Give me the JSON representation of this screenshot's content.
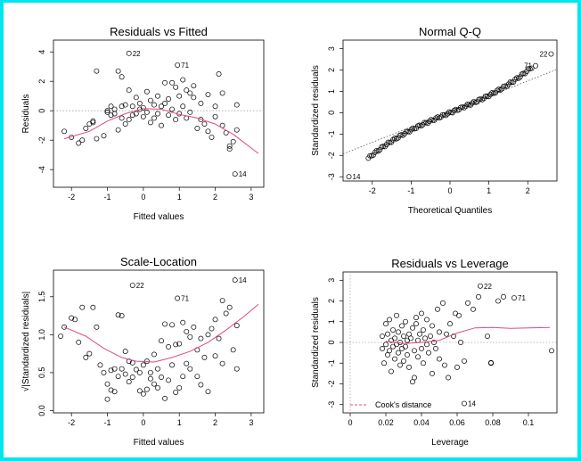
{
  "chart_data": [
    {
      "type": "scatter",
      "title": "Residuals vs Fitted",
      "xlabel": "Fitted values",
      "ylabel": "Residuals",
      "xlim": [
        -2.5,
        3.35
      ],
      "ylim": [
        -5.2,
        4.8
      ],
      "xticks": [
        -2,
        -1,
        0,
        1,
        2,
        3
      ],
      "yticks": [
        -4,
        -2,
        0,
        2,
        4
      ],
      "reference_line": {
        "type": "horizontal",
        "y": 0,
        "style": "dotted",
        "color": "#a8a8a8"
      },
      "smooth": {
        "color": "#e04b72",
        "x": [
          -2.2,
          -1.5,
          -1.0,
          -0.5,
          0.0,
          0.5,
          1.0,
          1.5,
          2.0,
          2.5,
          3.2
        ],
        "y": [
          -1.9,
          -1.4,
          -0.7,
          -0.2,
          0.15,
          0.1,
          -0.25,
          -0.5,
          -0.9,
          -1.6,
          -2.9
        ]
      },
      "points": [
        [
          -2.2,
          -1.4
        ],
        [
          -2.0,
          -1.8
        ],
        [
          -1.8,
          -2.2
        ],
        [
          -1.7,
          -2.0
        ],
        [
          -1.6,
          -1.2
        ],
        [
          -1.5,
          -0.9
        ],
        [
          -1.4,
          -0.7
        ],
        [
          -1.4,
          -0.8
        ],
        [
          -1.3,
          2.7
        ],
        [
          -1.3,
          -1.9
        ],
        [
          -1.1,
          -1.7
        ],
        [
          -1.0,
          -0.1
        ],
        [
          -1.0,
          0.0
        ],
        [
          -0.9,
          0.3
        ],
        [
          -0.9,
          -0.3
        ],
        [
          -0.8,
          0.1
        ],
        [
          -0.8,
          -0.2
        ],
        [
          -0.7,
          2.7
        ],
        [
          -0.7,
          -1.3
        ],
        [
          -0.6,
          2.3
        ],
        [
          -0.6,
          0.3
        ],
        [
          -0.6,
          -0.5
        ],
        [
          -0.5,
          0.4
        ],
        [
          -0.5,
          -0.9
        ],
        [
          -0.4,
          1.4
        ],
        [
          -0.4,
          -0.6
        ],
        [
          -0.3,
          0.3
        ],
        [
          -0.3,
          -0.3
        ],
        [
          -0.2,
          0.9
        ],
        [
          -0.2,
          -0.2
        ],
        [
          -0.1,
          0.1
        ],
        [
          -0.1,
          0.5
        ],
        [
          0.0,
          0.2
        ],
        [
          0.0,
          -0.4
        ],
        [
          0.1,
          1.3
        ],
        [
          0.1,
          -0.1
        ],
        [
          0.2,
          0.7
        ],
        [
          0.2,
          -0.8
        ],
        [
          0.3,
          0.4
        ],
        [
          0.3,
          -0.5
        ],
        [
          0.4,
          1.0
        ],
        [
          0.4,
          -0.2
        ],
        [
          0.5,
          0.3
        ],
        [
          0.5,
          -1.0
        ],
        [
          0.6,
          1.9
        ],
        [
          0.6,
          0.5
        ],
        [
          0.7,
          0.8
        ],
        [
          0.7,
          -0.3
        ],
        [
          0.8,
          1.9
        ],
        [
          0.8,
          0.1
        ],
        [
          0.9,
          1.6
        ],
        [
          0.9,
          -0.6
        ],
        [
          1.0,
          1.0
        ],
        [
          1.0,
          -0.2
        ],
        [
          1.1,
          2.1
        ],
        [
          1.1,
          0.3
        ],
        [
          1.2,
          1.4
        ],
        [
          1.2,
          -0.5
        ],
        [
          1.3,
          1.2
        ],
        [
          1.3,
          -0.1
        ],
        [
          1.4,
          1.7
        ],
        [
          1.4,
          0.9
        ],
        [
          1.5,
          -1.2
        ],
        [
          1.6,
          0.5
        ],
        [
          1.6,
          -0.6
        ],
        [
          1.7,
          -0.9
        ],
        [
          1.8,
          1.1
        ],
        [
          1.8,
          -1.4
        ],
        [
          1.9,
          -1.8
        ],
        [
          2.0,
          0.3
        ],
        [
          2.0,
          -0.4
        ],
        [
          2.1,
          2.5
        ],
        [
          2.2,
          1.2
        ],
        [
          2.2,
          -1.0
        ],
        [
          2.3,
          -1.5
        ],
        [
          2.4,
          -2.6
        ],
        [
          2.4,
          -2.4
        ],
        [
          2.5,
          -2.1
        ],
        [
          2.6,
          0.4
        ],
        [
          2.6,
          -1.3
        ],
        [
          -0.4,
          3.9
        ],
        [
          0.95,
          3.1
        ],
        [
          2.55,
          -4.3
        ]
      ],
      "labeled_points": [
        {
          "x": -0.4,
          "y": 3.9,
          "label": "22"
        },
        {
          "x": 0.95,
          "y": 3.1,
          "label": "71"
        },
        {
          "x": 2.55,
          "y": -4.3,
          "label": "14"
        }
      ]
    },
    {
      "type": "scatter",
      "title": "Normal Q-Q",
      "xlabel": "Theoretical Quantiles",
      "ylabel": "Standardized residuals",
      "xlim": [
        -2.75,
        2.75
      ],
      "ylim": [
        -3.2,
        3.4
      ],
      "xticks": [
        -2,
        -1,
        0,
        1,
        2
      ],
      "yticks": [
        -3,
        -2,
        -1,
        0,
        1,
        2,
        3
      ],
      "reference_line": {
        "type": "slope",
        "slope": 0.72,
        "intercept": 0.05,
        "style": "dotted",
        "color": "#555555"
      },
      "qq": {
        "n": 100,
        "start": -2.1,
        "end": 2.1,
        "slope": 0.75,
        "cubic": 0.06,
        "noise": 0.05
      },
      "labeled_points": [
        {
          "x": -2.6,
          "y": -3.0,
          "label": "14"
        },
        {
          "x": 2.6,
          "y": 2.75,
          "label": "22"
        },
        {
          "x": 2.2,
          "y": 2.2,
          "label": "71"
        }
      ]
    },
    {
      "type": "scatter",
      "title": "Scale-Location",
      "xlabel": "Fitted values",
      "ylabel": "√|Standardized residuals|",
      "xlim": [
        -2.5,
        3.35
      ],
      "ylim": [
        -0.03,
        1.85
      ],
      "xticks": [
        -2,
        -1,
        0,
        1,
        2,
        3
      ],
      "yticks": [
        0.0,
        0.5,
        1.0,
        1.5
      ],
      "smooth": {
        "color": "#e04b72",
        "x": [
          -2.2,
          -1.6,
          -1.1,
          -0.6,
          -0.2,
          0.3,
          0.8,
          1.3,
          1.8,
          2.3,
          2.8,
          3.2
        ],
        "y": [
          1.1,
          0.98,
          0.82,
          0.7,
          0.65,
          0.64,
          0.7,
          0.78,
          0.9,
          1.06,
          1.24,
          1.4
        ]
      },
      "points": [
        [
          -2.3,
          0.98
        ],
        [
          -2.2,
          1.1
        ],
        [
          -2.0,
          1.22
        ],
        [
          -1.9,
          1.2
        ],
        [
          -1.8,
          0.9
        ],
        [
          -1.7,
          1.36
        ],
        [
          -1.6,
          0.7
        ],
        [
          -1.5,
          0.75
        ],
        [
          -1.4,
          1.36
        ],
        [
          -1.3,
          1.1
        ],
        [
          -1.2,
          0.6
        ],
        [
          -1.1,
          0.5
        ],
        [
          -1.0,
          0.35
        ],
        [
          -1.0,
          0.15
        ],
        [
          -0.9,
          0.27
        ],
        [
          -0.9,
          0.53
        ],
        [
          -0.8,
          0.55
        ],
        [
          -0.8,
          0.25
        ],
        [
          -0.7,
          1.26
        ],
        [
          -0.7,
          0.45
        ],
        [
          -0.6,
          1.25
        ],
        [
          -0.6,
          0.55
        ],
        [
          -0.5,
          0.48
        ],
        [
          -0.5,
          0.78
        ],
        [
          -0.4,
          0.65
        ],
        [
          -0.4,
          0.38
        ],
        [
          -0.3,
          0.63
        ],
        [
          -0.3,
          0.44
        ],
        [
          -0.2,
          0.54
        ],
        [
          -0.1,
          0.5
        ],
        [
          -0.1,
          0.26
        ],
        [
          0.0,
          0.22
        ],
        [
          0.0,
          0.6
        ],
        [
          0.1,
          0.28
        ],
        [
          0.1,
          0.65
        ],
        [
          0.2,
          0.5
        ],
        [
          0.2,
          0.42
        ],
        [
          0.3,
          0.35
        ],
        [
          0.3,
          0.74
        ],
        [
          0.4,
          0.3
        ],
        [
          0.4,
          0.55
        ],
        [
          0.5,
          0.92
        ],
        [
          0.5,
          0.44
        ],
        [
          0.6,
          0.16
        ],
        [
          0.6,
          1.14
        ],
        [
          0.7,
          0.84
        ],
        [
          0.7,
          0.4
        ],
        [
          0.8,
          1.13
        ],
        [
          0.8,
          0.6
        ],
        [
          0.9,
          0.87
        ],
        [
          0.9,
          0.24
        ],
        [
          1.0,
          0.88
        ],
        [
          1.0,
          0.3
        ],
        [
          1.1,
          1.16
        ],
        [
          1.1,
          0.45
        ],
        [
          1.2,
          1.04
        ],
        [
          1.2,
          0.62
        ],
        [
          1.3,
          0.97
        ],
        [
          1.3,
          0.55
        ],
        [
          1.4,
          1.1
        ],
        [
          1.5,
          0.8
        ],
        [
          1.5,
          0.45
        ],
        [
          1.6,
          0.95
        ],
        [
          1.6,
          0.34
        ],
        [
          1.7,
          0.7
        ],
        [
          1.8,
          1.0
        ],
        [
          1.8,
          0.25
        ],
        [
          1.9,
          1.08
        ],
        [
          2.0,
          1.2
        ],
        [
          2.0,
          0.72
        ],
        [
          2.1,
          0.95
        ],
        [
          2.2,
          1.45
        ],
        [
          2.2,
          0.62
        ],
        [
          2.3,
          1.28
        ],
        [
          2.4,
          1.36
        ],
        [
          2.5,
          0.8
        ],
        [
          2.6,
          0.55
        ],
        [
          2.6,
          1.12
        ],
        [
          -0.3,
          1.65
        ],
        [
          0.95,
          1.48
        ],
        [
          2.55,
          1.72
        ]
      ],
      "labeled_points": [
        {
          "x": -0.3,
          "y": 1.65,
          "label": "22"
        },
        {
          "x": 0.95,
          "y": 1.48,
          "label": "71"
        },
        {
          "x": 2.55,
          "y": 1.72,
          "label": "14"
        }
      ]
    },
    {
      "type": "scatter",
      "title": "Residuals vs Leverage",
      "xlabel": "Leverage",
      "ylabel": "Standardized residuals",
      "xlim": [
        -0.004,
        0.116
      ],
      "ylim": [
        -3.4,
        3.4
      ],
      "xticks": [
        0.0,
        0.02,
        0.04,
        0.06,
        0.08,
        0.1
      ],
      "yticks": [
        -3,
        -2,
        -1,
        0,
        1,
        2,
        3
      ],
      "reference_line": {
        "type": "horizontal",
        "y": 0,
        "style": "dotted",
        "color": "#a8a8a8"
      },
      "vertical_line": {
        "x": 0,
        "style": "dotted",
        "color": "#a8a8a8"
      },
      "smooth": {
        "color": "#e04b72",
        "x": [
          0.02,
          0.03,
          0.04,
          0.05,
          0.06,
          0.07,
          0.08,
          0.09,
          0.1,
          0.112
        ],
        "y": [
          0.05,
          -0.05,
          0.0,
          0.1,
          0.45,
          0.7,
          0.72,
          0.68,
          0.7,
          0.72
        ]
      },
      "legend": {
        "label": "Cook's distance",
        "color": "#e04b72",
        "position": "bottom-left"
      },
      "points": [
        [
          0.018,
          -0.3
        ],
        [
          0.018,
          0.3
        ],
        [
          0.019,
          -1.0
        ],
        [
          0.02,
          0.9
        ],
        [
          0.02,
          -0.1
        ],
        [
          0.021,
          0.4
        ],
        [
          0.021,
          -0.6
        ],
        [
          0.022,
          1.1
        ],
        [
          0.022,
          -0.4
        ],
        [
          0.023,
          0.1
        ],
        [
          0.023,
          -1.4
        ],
        [
          0.024,
          0.6
        ],
        [
          0.024,
          -0.2
        ],
        [
          0.025,
          -0.8
        ],
        [
          0.025,
          0.2
        ],
        [
          0.026,
          1.3
        ],
        [
          0.026,
          -0.1
        ],
        [
          0.027,
          0.5
        ],
        [
          0.027,
          -0.5
        ],
        [
          0.028,
          -1.1
        ],
        [
          0.028,
          0.0
        ],
        [
          0.029,
          0.8
        ],
        [
          0.029,
          -0.3
        ],
        [
          0.03,
          0.3
        ],
        [
          0.03,
          -0.9
        ],
        [
          0.031,
          -0.2
        ],
        [
          0.031,
          1.0
        ],
        [
          0.032,
          0.1
        ],
        [
          0.032,
          -0.6
        ],
        [
          0.033,
          0.4
        ],
        [
          0.033,
          -1.2
        ],
        [
          0.034,
          0.2
        ],
        [
          0.035,
          0.7
        ],
        [
          0.035,
          -1.9
        ],
        [
          0.036,
          -0.4
        ],
        [
          0.036,
          -1.7
        ],
        [
          0.037,
          0.9
        ],
        [
          0.037,
          1.2
        ],
        [
          0.038,
          0.1
        ],
        [
          0.038,
          -0.7
        ],
        [
          0.039,
          0.4
        ],
        [
          0.04,
          1.4
        ],
        [
          0.04,
          -0.3
        ],
        [
          0.041,
          0.6
        ],
        [
          0.041,
          -1.0
        ],
        [
          0.042,
          0.2
        ],
        [
          0.043,
          -0.1
        ],
        [
          0.043,
          1.1
        ],
        [
          0.044,
          -0.5
        ],
        [
          0.045,
          0.3
        ],
        [
          0.046,
          0.8
        ],
        [
          0.046,
          -1.5
        ],
        [
          0.047,
          0.0
        ],
        [
          0.048,
          -0.3
        ],
        [
          0.049,
          1.6
        ],
        [
          0.05,
          0.5
        ],
        [
          0.05,
          -0.8
        ],
        [
          0.052,
          1.9
        ],
        [
          0.053,
          -1.1
        ],
        [
          0.054,
          0.4
        ],
        [
          0.055,
          -1.7
        ],
        [
          0.056,
          0.9
        ],
        [
          0.058,
          0.3
        ],
        [
          0.059,
          1.4
        ],
        [
          0.06,
          -1.2
        ],
        [
          0.061,
          1.3
        ],
        [
          0.062,
          0.0
        ],
        [
          0.064,
          -0.9
        ],
        [
          0.066,
          1.9
        ],
        [
          0.069,
          1.6
        ],
        [
          0.072,
          2.2
        ],
        [
          0.077,
          0.3
        ],
        [
          0.079,
          -1.0
        ],
        [
          0.079,
          -0.98
        ],
        [
          0.083,
          2.0
        ],
        [
          0.086,
          2.2
        ],
        [
          0.113,
          -0.4
        ],
        [
          0.073,
          2.72
        ],
        [
          0.092,
          2.15
        ],
        [
          0.064,
          -2.95
        ]
      ],
      "labeled_points": [
        {
          "x": 0.073,
          "y": 2.72,
          "label": "22"
        },
        {
          "x": 0.092,
          "y": 2.15,
          "label": "71"
        },
        {
          "x": 0.064,
          "y": -2.95,
          "label": "14"
        }
      ]
    }
  ]
}
